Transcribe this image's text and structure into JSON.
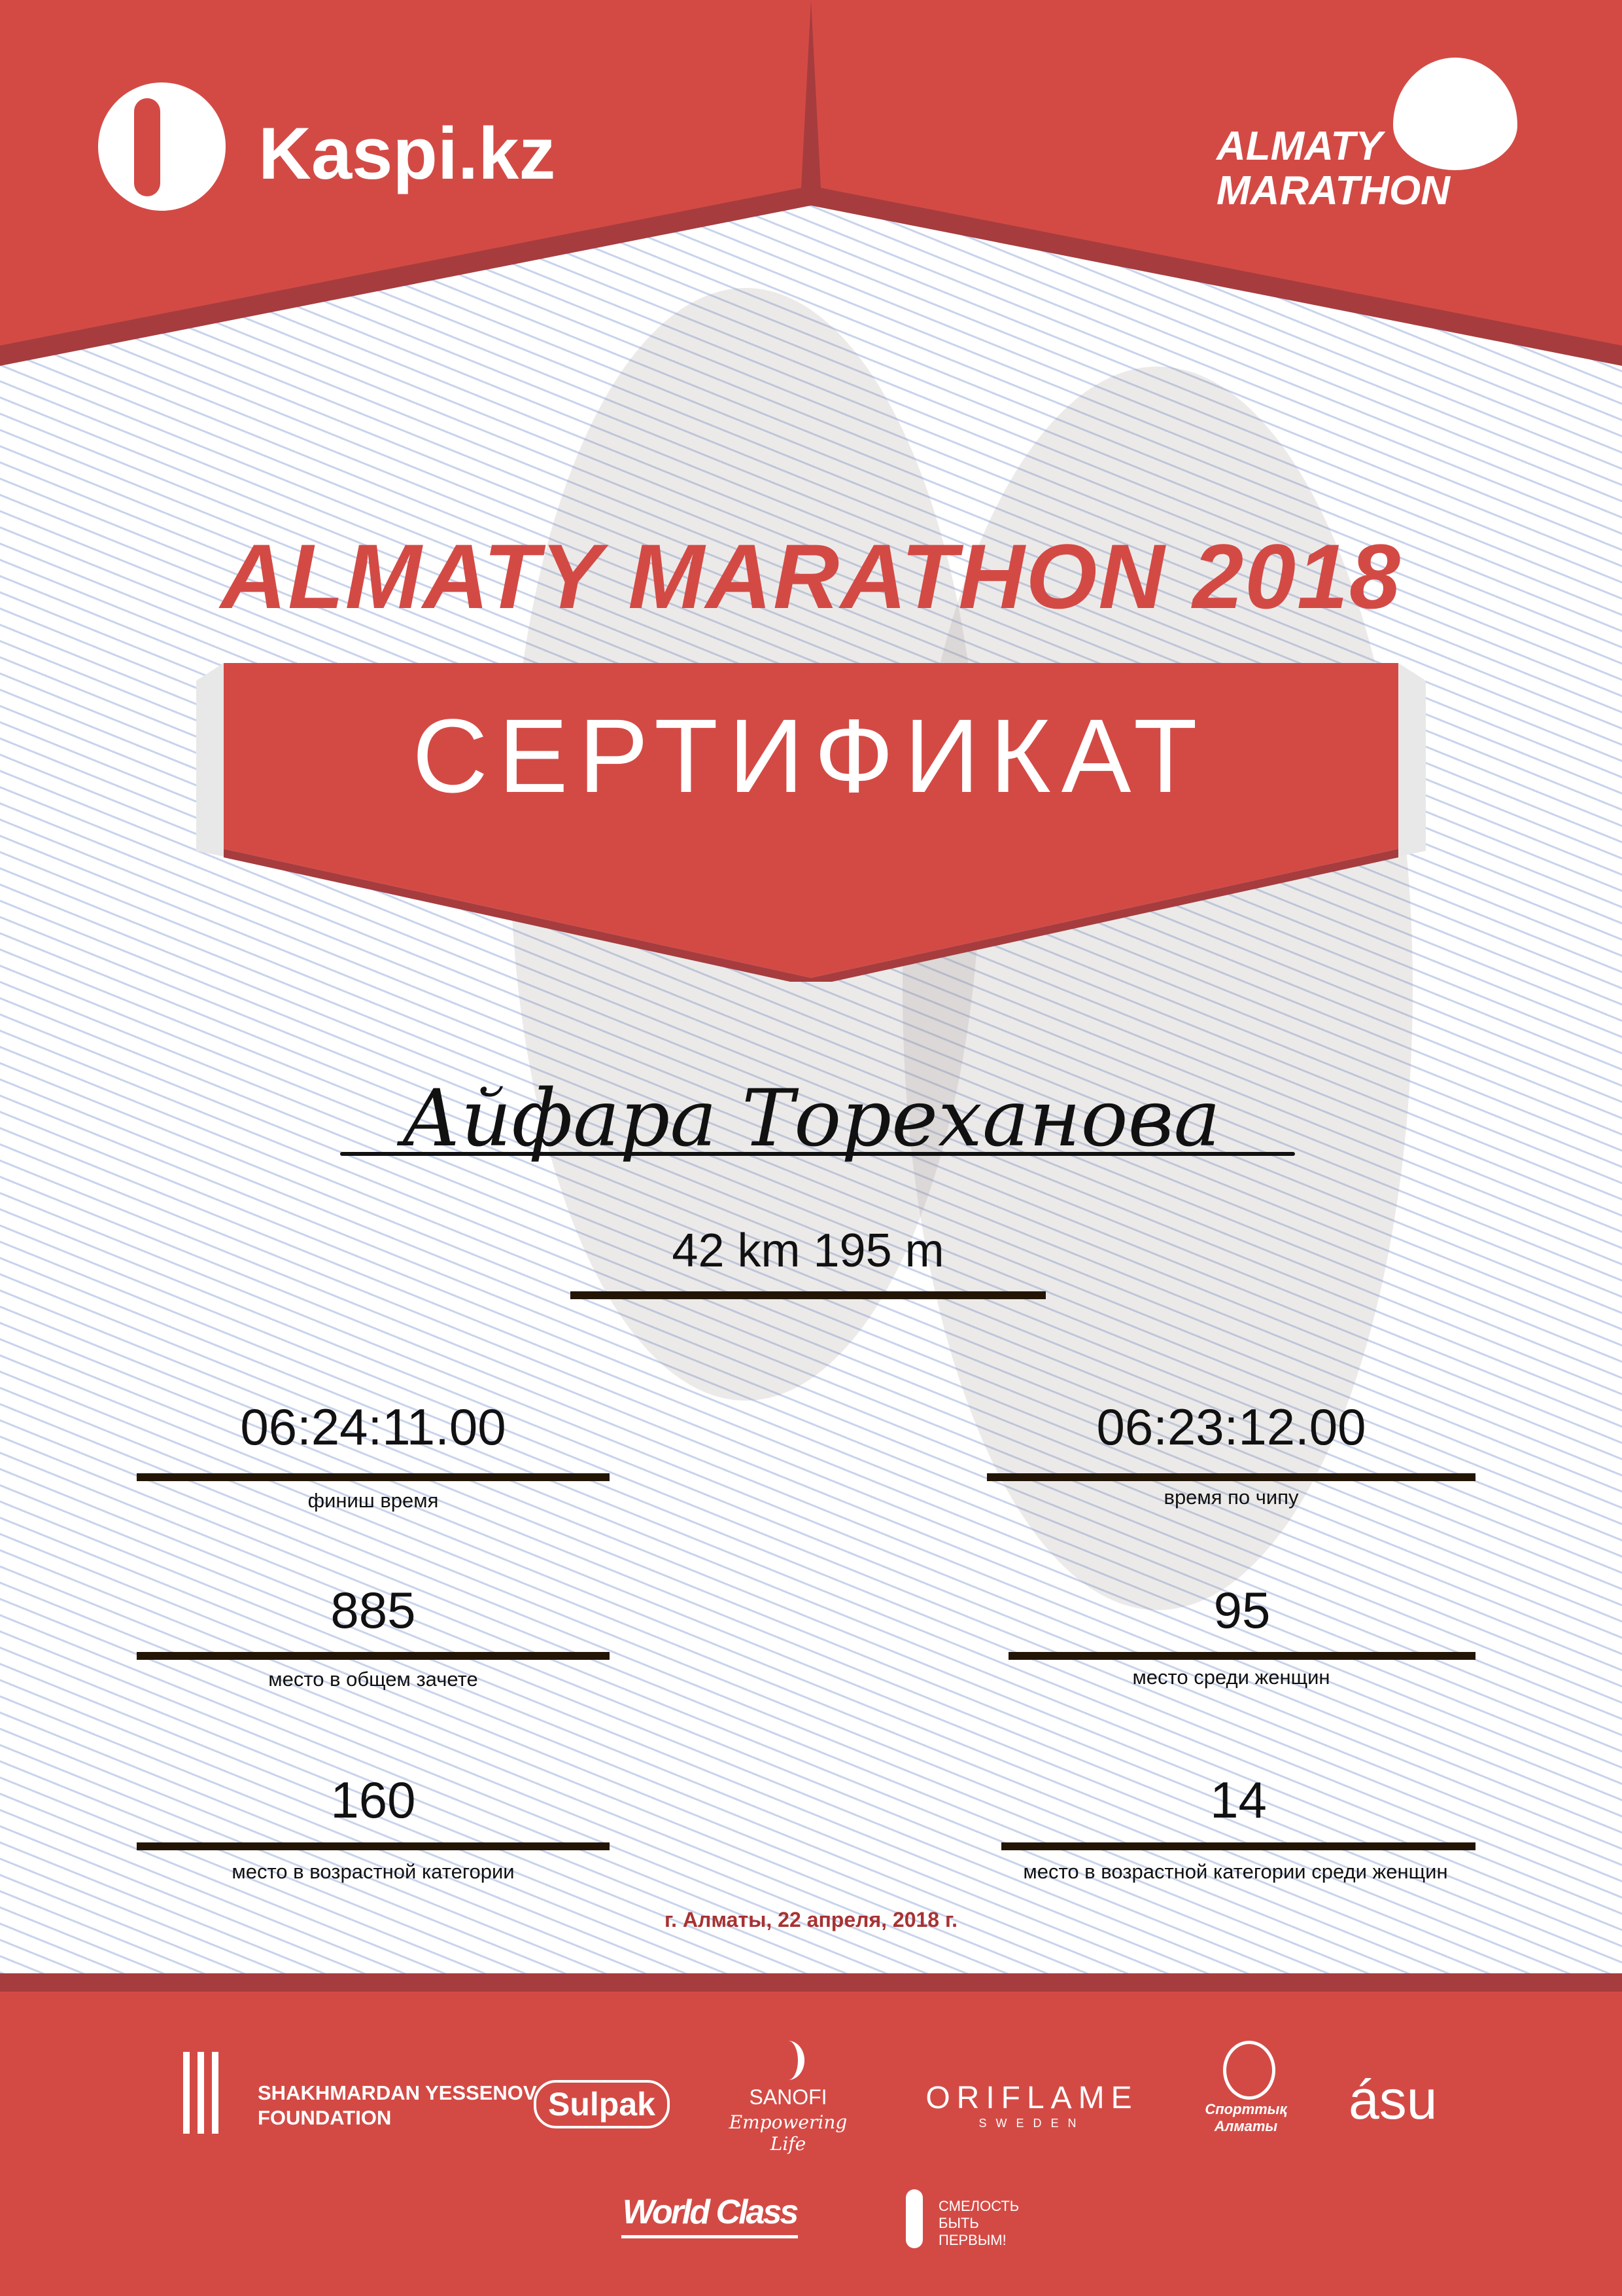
{
  "header": {
    "sponsor_logo": "Kaspi.kz",
    "event_logo_line1": "ALMATY",
    "event_logo_line2": "MARATHON"
  },
  "title": "ALMATY MARATHON 2018",
  "banner": "СЕРТИФИКАТ",
  "participant_name": "Айфара Тореханова",
  "distance": "42 km 195 m",
  "results": [
    {
      "value": "06:24:11.00",
      "label": "финиш время"
    },
    {
      "value": "06:23:12.00",
      "label": "время по чипу"
    },
    {
      "value": "885",
      "label": "место в общем зачете"
    },
    {
      "value": "95",
      "label": "место среди женщин"
    },
    {
      "value": "160",
      "label": "место в возрастной категории"
    },
    {
      "value": "14",
      "label": "место в возрастной категории среди женщин"
    }
  ],
  "date_place": "г. Алматы, 22 апреля, 2018 г.",
  "sponsors": {
    "yessenov_line1": "SHAKHMARDAN YESSENOV",
    "yessenov_line2": "FOUNDATION",
    "sulpak": "Sulpak",
    "sanofi": "SANOFI",
    "sanofi_tagline": "Empowering Life",
    "oriflame": "ORIFLAME",
    "oriflame_sub": "SWEDEN",
    "sport_almaty": "Спорттық Алматы",
    "asu": "ásu",
    "worldclass": "World Class",
    "smelost": "СМЕЛОСТЬ БЫТЬ ПЕРВЫМ!"
  },
  "colors": {
    "brand_red": "#d34a45",
    "dark_red": "#a63c3e",
    "date_red": "#a83232",
    "underline": "#231505"
  }
}
